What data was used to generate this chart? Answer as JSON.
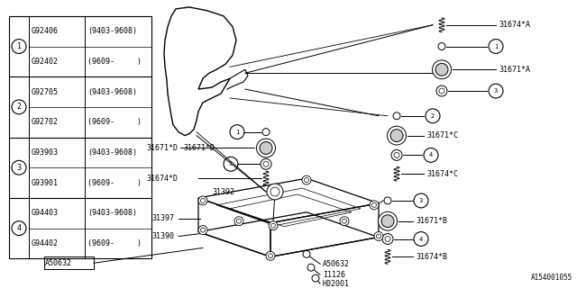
{
  "bg_color": "#ffffff",
  "diagram_id": "A154001055",
  "text_color": "#000000",
  "line_color": "#000000",
  "font_size": 6.5,
  "table": {
    "rows": [
      {
        "num": "1",
        "parts": [
          {
            "code": "G92406",
            "range": "(9403-9608)"
          },
          {
            "code": "G92402",
            "range": "(9609-     )"
          }
        ]
      },
      {
        "num": "2",
        "parts": [
          {
            "code": "G92705",
            "range": "(9403-9608)"
          },
          {
            "code": "G92702",
            "range": "(9609-     )"
          }
        ]
      },
      {
        "num": "3",
        "parts": [
          {
            "code": "G93903",
            "range": "(9403-9608)"
          },
          {
            "code": "G93901",
            "range": "(9609-     )"
          }
        ]
      },
      {
        "num": "4",
        "parts": [
          {
            "code": "G94403",
            "range": "(9403-9608)"
          },
          {
            "code": "G94402",
            "range": "(9609-     )"
          }
        ]
      }
    ]
  }
}
